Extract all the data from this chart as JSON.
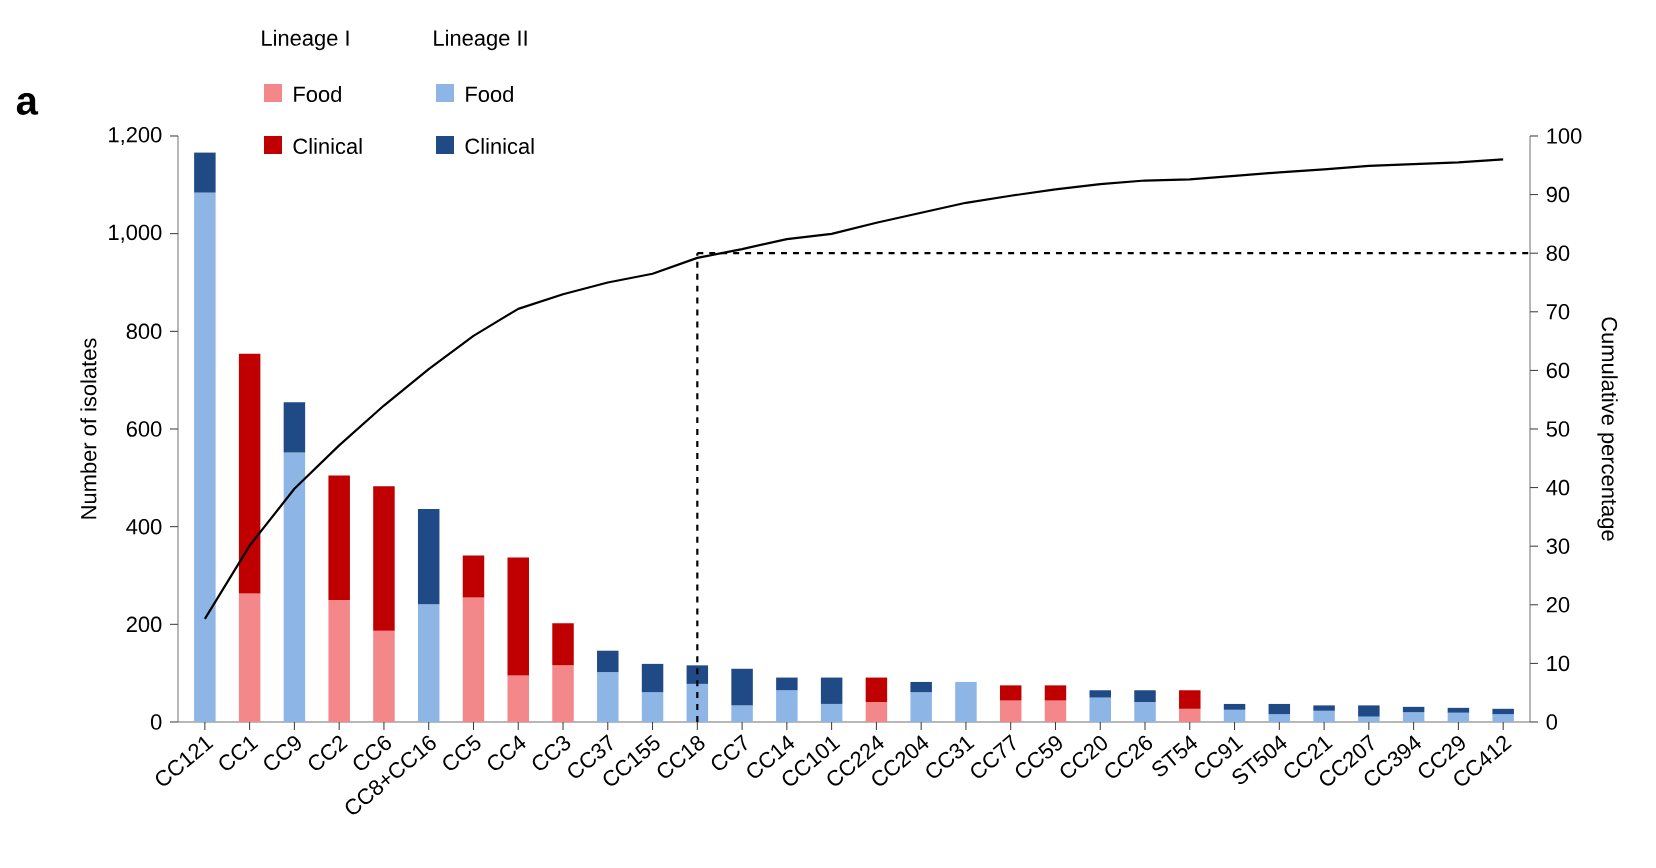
{
  "chart_data": {
    "type": "bar",
    "stacked": true,
    "ylabel": "Number of isolates",
    "y2label": "Cumulative percentage",
    "annotations": [
      "a",
      "Lineage I",
      "Lineage II"
    ],
    "categories": [
      "CC121",
      "CC1",
      "CC9",
      "CC2",
      "CC6",
      "CC8+CC16",
      "CC5",
      "CC4",
      "CC3",
      "CC37",
      "CC155",
      "CC18",
      "CC7",
      "CC14",
      "CC101",
      "CC224",
      "CC204",
      "CC31",
      "CC77",
      "CC59",
      "CC20",
      "CC26",
      "ST54",
      "CC91",
      "ST504",
      "CC21",
      "CC207",
      "CC394",
      "CC29",
      "CC412"
    ],
    "series": [
      {
        "name": "Food",
        "color": "#f4878a",
        "values": [
          null,
          263,
          null,
          250,
          187,
          null,
          255,
          95,
          116,
          null,
          null,
          null,
          null,
          null,
          null,
          41,
          null,
          null,
          44,
          44,
          null,
          null,
          27,
          null,
          null,
          null,
          null,
          null,
          null,
          null
        ]
      },
      {
        "name": "Clinical",
        "color": "#c00000",
        "values": [
          null,
          491,
          null,
          255,
          296,
          null,
          86,
          242,
          86,
          null,
          null,
          null,
          null,
          null,
          null,
          50,
          null,
          null,
          31,
          31,
          null,
          null,
          38,
          null,
          null,
          null,
          null,
          null,
          null,
          null
        ]
      },
      {
        "name": "Food",
        "color": "#8db6e6",
        "values": [
          1084,
          null,
          552,
          null,
          null,
          241,
          null,
          null,
          null,
          102,
          61,
          78,
          34,
          65,
          37,
          null,
          61,
          82,
          null,
          null,
          50,
          41,
          null,
          25,
          16,
          23,
          11,
          20,
          19,
          16
        ]
      },
      {
        "name": "Clinical",
        "color": "#1f4a86",
        "values": [
          82,
          null,
          103,
          null,
          null,
          195,
          null,
          null,
          null,
          44,
          58,
          38,
          75,
          26,
          54,
          null,
          21,
          null,
          null,
          null,
          15,
          24,
          null,
          12,
          21,
          11,
          23,
          11,
          10,
          11
        ]
      },
      {
        "type": "line",
        "axis": "y2",
        "color": "#000000",
        "values": [
          17.6,
          30.1,
          39.8,
          47.2,
          54,
          60.2,
          65.9,
          70.5,
          73,
          75,
          76.5,
          79.2,
          80.7,
          82.4,
          83.3,
          85.2,
          86.9,
          88.6,
          89.8,
          90.9,
          91.8,
          92.4,
          92.6,
          93.2,
          93.8,
          94.3,
          94.9,
          95.2,
          95.5,
          96
        ]
      }
    ],
    "ylim": [
      0,
      1200
    ],
    "yticks": [
      0,
      200,
      400,
      600,
      800,
      {
        "value": 1000,
        "label": "1,000"
      },
      {
        "value": 1200,
        "label": "1,200"
      }
    ],
    "y2lim": [
      0,
      100
    ],
    "y2ticks": [
      0,
      10,
      20,
      30,
      40,
      50,
      60,
      70,
      80,
      90,
      100
    ],
    "ref_lines": [
      {
        "axis": "x",
        "value": "CC18",
        "line_style": "dashed",
        "color": "#000000"
      },
      {
        "axis": "y2",
        "value": 80,
        "line_style": "dashed",
        "color": "#000000"
      }
    ],
    "legend": "top left",
    "grid": false
  }
}
